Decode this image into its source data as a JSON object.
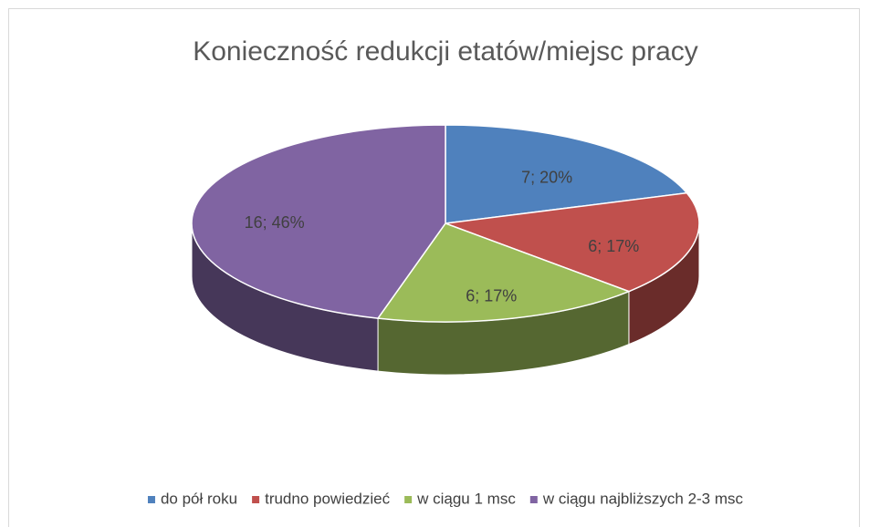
{
  "chart_data": {
    "type": "pie3d",
    "title": "Konieczność redukcji etatów/miejsc pracy",
    "categories": [
      "do pół roku",
      "trudno powiedzieć",
      "w ciągu 1 msc",
      "w ciągu najbliższych 2-3 msc"
    ],
    "values": [
      7,
      6,
      6,
      16
    ],
    "value_labels": [
      "7; 20%",
      "6; 17%",
      "6; 17%",
      "16; 46%"
    ],
    "colors": [
      "#4f81bd",
      "#c0504d",
      "#9bbb59",
      "#8064a2"
    ],
    "legend": "bottom"
  }
}
